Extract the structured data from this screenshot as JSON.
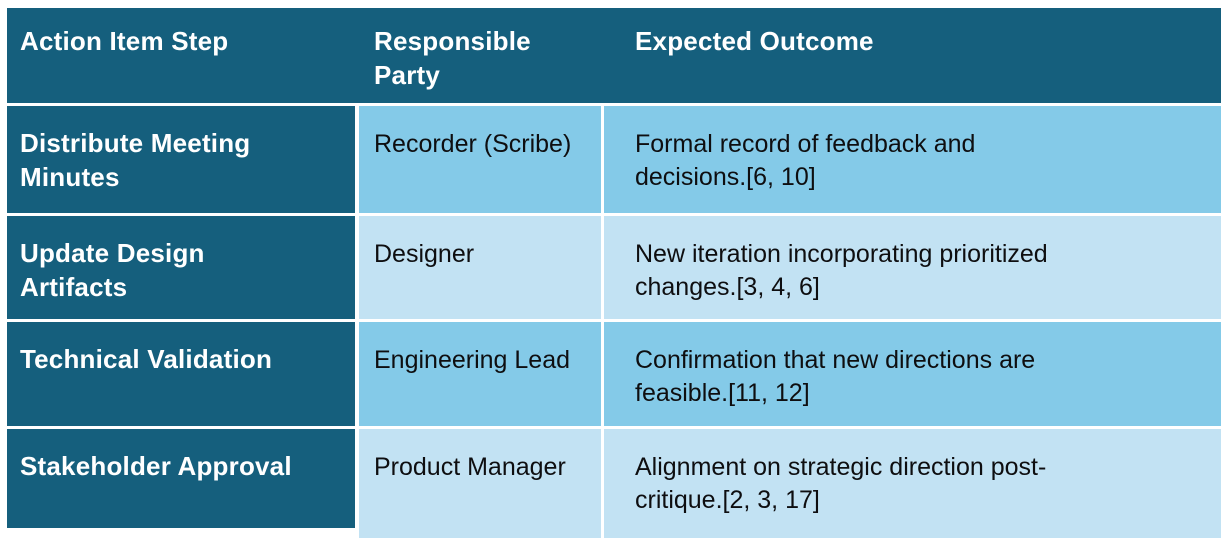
{
  "table": {
    "columns": [
      {
        "label": "Action Item Step"
      },
      {
        "label": "Responsible\nParty"
      },
      {
        "label": "Expected Outcome"
      }
    ],
    "rows": [
      {
        "step": "Distribute Meeting\nMinutes",
        "party": "Recorder (Scribe)",
        "outcome": "Formal record of feedback and\ndecisions.[6, 10]"
      },
      {
        "step": "Update Design\nArtifacts",
        "party": "Designer",
        "outcome": "New iteration incorporating prioritized\nchanges.[3, 4, 6]"
      },
      {
        "step": "Technical Validation",
        "party": "Engineering Lead",
        "outcome": "Confirmation that new directions are\nfeasible.[11, 12]"
      },
      {
        "step": "Stakeholder Approval",
        "party": "Product Manager",
        "outcome": "Alignment on strategic direction post-\ncritique.[2, 3, 17]"
      }
    ],
    "colors": {
      "header_bg": "#155F7D",
      "header_text": "#FFFFFF",
      "row_odd_bg": "#84CAE8",
      "row_even_bg": "#C2E2F3",
      "body_text": "#0E0E10"
    }
  }
}
